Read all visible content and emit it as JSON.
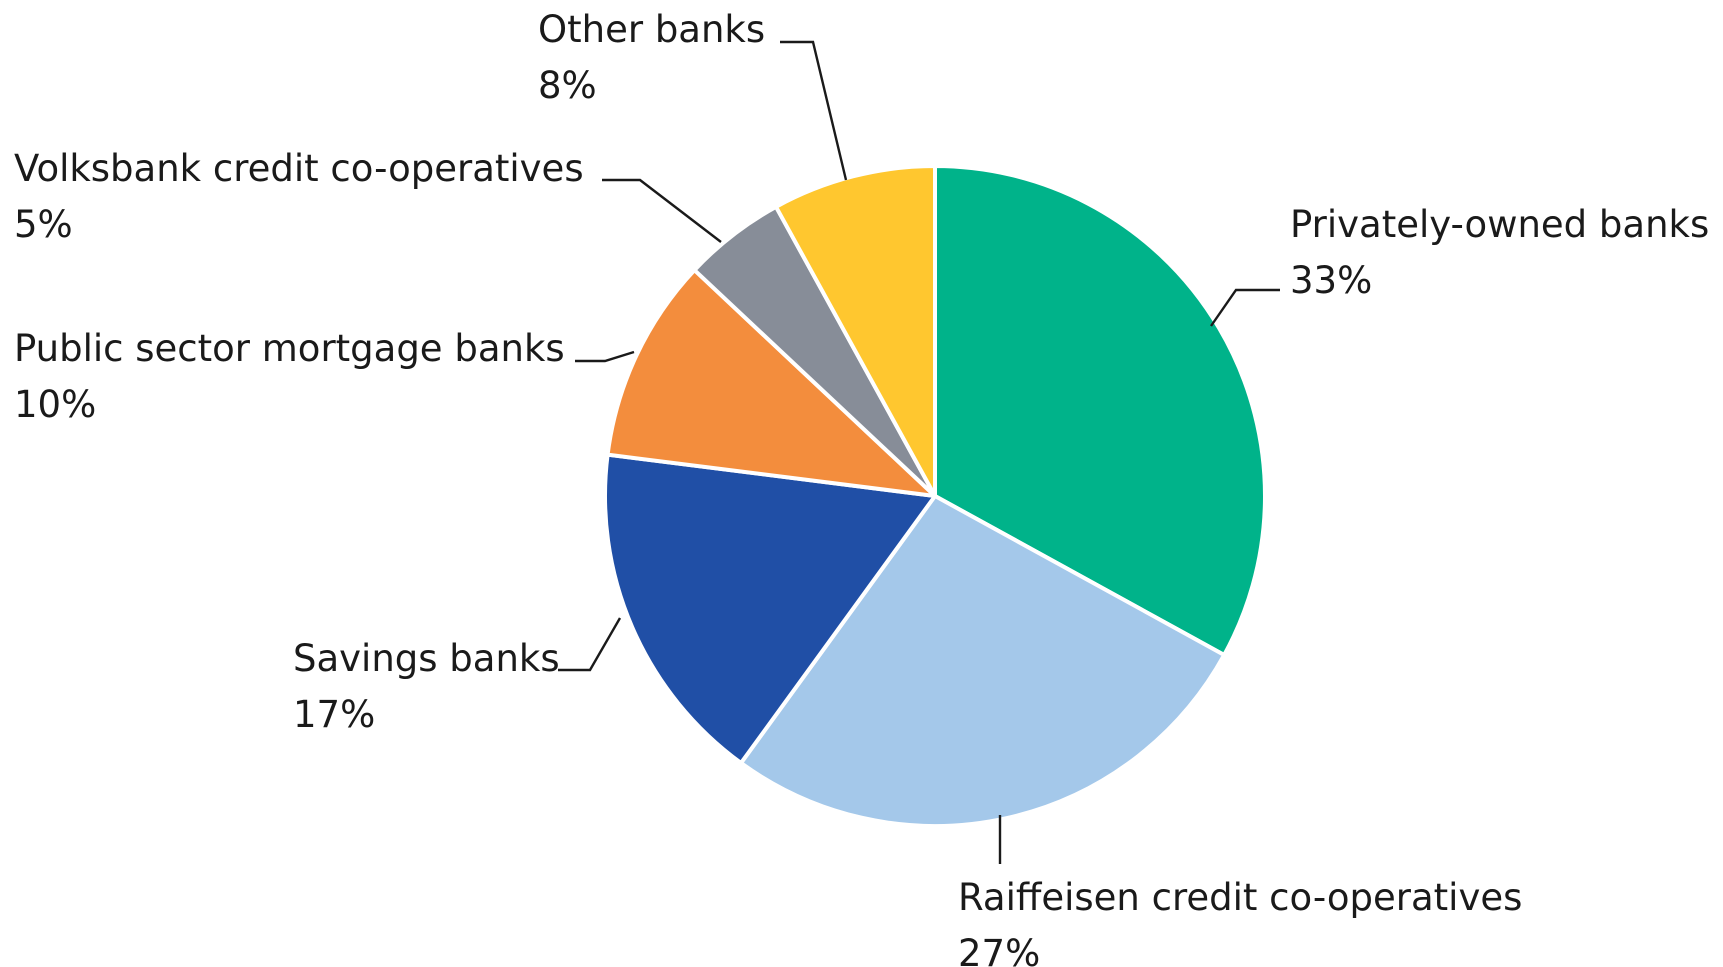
{
  "chart_data": {
    "type": "pie",
    "title": "",
    "slices": [
      {
        "label": "Privately-owned banks",
        "percent_label": "33%",
        "value": 33,
        "color": "#00B38A"
      },
      {
        "label": "Raiffeisen credit co-operatives",
        "percent_label": "27%",
        "value": 27,
        "color": "#A4C8EA"
      },
      {
        "label": "Savings banks",
        "percent_label": "17%",
        "value": 17,
        "color": "#204FA6"
      },
      {
        "label": "Public sector mortgage banks",
        "percent_label": "10%",
        "value": 10,
        "color": "#F38D3D"
      },
      {
        "label": "Volksbank credit co-operatives",
        "percent_label": "5%",
        "value": 5,
        "color": "#878D98"
      },
      {
        "label": "Other banks",
        "percent_label": "8%",
        "value": 8,
        "color": "#FFC72F"
      }
    ],
    "start": "12 o'clock",
    "direction": "clockwise",
    "legend": "none (direct labels with leader lines)"
  }
}
